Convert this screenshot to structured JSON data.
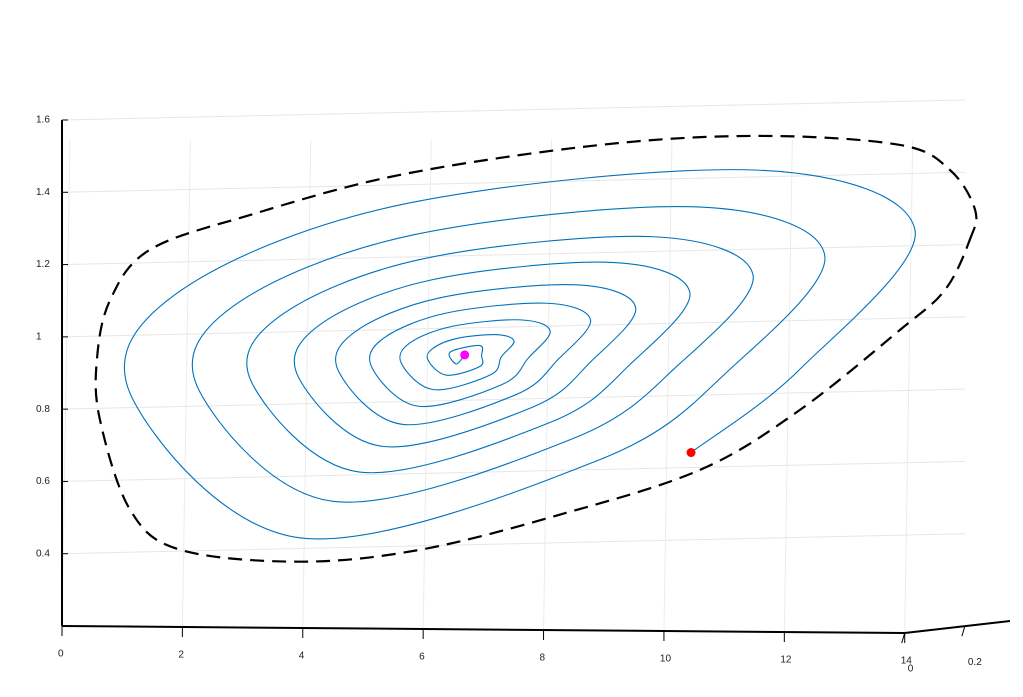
{
  "chart_data": {
    "type": "line",
    "grid": true,
    "xlim": [
      0,
      15.5
    ],
    "xticks": [
      0,
      2,
      4,
      6,
      8,
      10,
      12,
      14
    ],
    "ylim": [
      0.2,
      1.6
    ],
    "yticks": [
      0.4,
      0.6,
      0.8,
      1,
      1.2,
      1.4,
      1.6
    ],
    "zticks": [
      0,
      0.2
    ],
    "series": [
      {
        "color": "#0072bd",
        "style": "solid",
        "x": [
          10.45,
          12.25,
          14.17,
          11.59,
          5.61,
          1.87,
          1.18,
          3.95,
          8.93,
          11.14,
          12.67,
          10.61,
          5.83,
          2.83,
          2.28,
          4.5,
          8.48,
          10.25,
          11.48,
          9.83,
          6.0,
          3.61,
          3.16,
          4.94,
          8.12,
          9.47,
          10.43,
          9.14,
          6.15,
          4.28,
          3.93,
          5.32,
          7.81,
          8.8,
          9.53,
          8.55,
          6.28,
          4.86,
          4.6,
          5.65,
          7.54,
          8.25,
          8.78,
          8.06,
          6.39,
          5.34,
          5.15,
          5.92,
          7.32,
          7.75,
          8.11,
          7.62,
          6.48,
          5.77,
          5.64,
          6.17,
          7.12,
          7.3,
          7.51,
          7.23,
          6.57,
          6.16,
          6.08,
          6.39,
          6.94,
          6.97,
          6.94,
          6.45,
          6.55,
          6.69
        ],
        "values": [
          0.68,
          0.909,
          1.296,
          1.461,
          1.365,
          1.116,
          0.826,
          0.444,
          0.66,
          0.917,
          1.227,
          1.359,
          1.282,
          1.083,
          0.851,
          0.545,
          0.718,
          0.924,
          1.171,
          1.277,
          1.216,
          1.056,
          0.871,
          0.626,
          0.764,
          0.929,
          1.123,
          1.206,
          1.158,
          1.033,
          0.888,
          0.697,
          0.805,
          0.934,
          1.081,
          1.144,
          1.108,
          1.013,
          0.903,
          0.758,
          0.84,
          0.939,
          1.047,
          1.093,
          1.066,
          0.996,
          0.915,
          0.808,
          0.869,
          0.942,
          1.016,
          1.047,
          1.029,
          0.982,
          0.926,
          0.854,
          0.895,
          0.945,
          0.988,
          1.006,
          0.996,
          0.968,
          0.936,
          0.894,
          0.918,
          0.948,
          0.976,
          0.958,
          0.925,
          0.95
        ]
      },
      {
        "color": "#000000",
        "style": "dashed",
        "closed": true,
        "x": [
          15.08,
          15.17,
          14.75,
          13.92,
          11.59,
          8.94,
          5.61,
          3.12,
          1.46,
          0.8,
          0.58,
          0.63,
          1.13,
          1.96,
          3.95,
          5.95,
          8.27,
          10.6,
          12.26,
          13.92,
          14.67
        ],
        "values": [
          1.268,
          1.351,
          1.462,
          1.531,
          1.556,
          1.531,
          1.448,
          1.337,
          1.241,
          1.102,
          0.937,
          0.771,
          0.522,
          0.411,
          0.378,
          0.411,
          0.508,
          0.632,
          0.798,
          1.019,
          1.13
        ]
      },
      {
        "color": "#ff0000",
        "style": "marker",
        "x": [
          10.45
        ],
        "values": [
          0.68
        ]
      },
      {
        "color": "#ff00ff",
        "style": "marker",
        "x": [
          6.69
        ],
        "values": [
          0.95
        ]
      }
    ]
  }
}
